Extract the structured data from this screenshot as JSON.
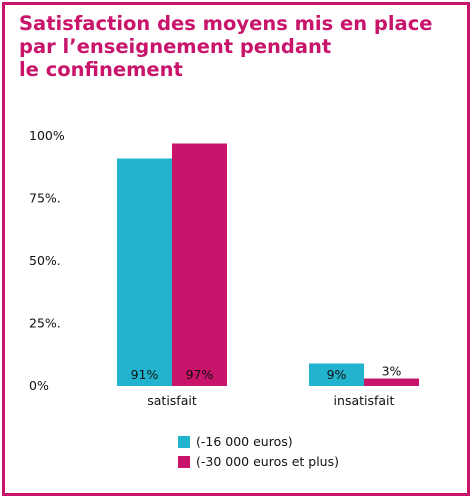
{
  "title": {
    "lines": [
      "Satisfaction des moyens mis en place",
      "par l’enseignement pendant",
      "le confinement"
    ]
  },
  "colors": {
    "frame": "#c8146a",
    "title": "#c8146a",
    "series_1": "#22b4cf",
    "series_2": "#c8146a"
  },
  "chart_data": {
    "type": "bar",
    "title": "Satisfaction des moyens mis en place par l’enseignement pendant le confinement",
    "categories": [
      "satisfait",
      "insatisfait"
    ],
    "series": [
      {
        "name": "(-16 000 euros)",
        "values": [
          91,
          9
        ],
        "labels": [
          "91%",
          "9%"
        ]
      },
      {
        "name": "(-30 000 euros et plus)",
        "values": [
          97,
          3
        ],
        "labels": [
          "97%",
          "3%"
        ]
      }
    ],
    "y_ticks": [
      {
        "value": 100,
        "label": "100%"
      },
      {
        "value": 75,
        "label": "75%."
      },
      {
        "value": 50,
        "label": "50%."
      },
      {
        "value": 25,
        "label": "25%."
      },
      {
        "value": 0,
        "label": "0%"
      }
    ],
    "ylim": [
      0,
      100
    ],
    "grid": false,
    "legend_position": "bottom"
  }
}
